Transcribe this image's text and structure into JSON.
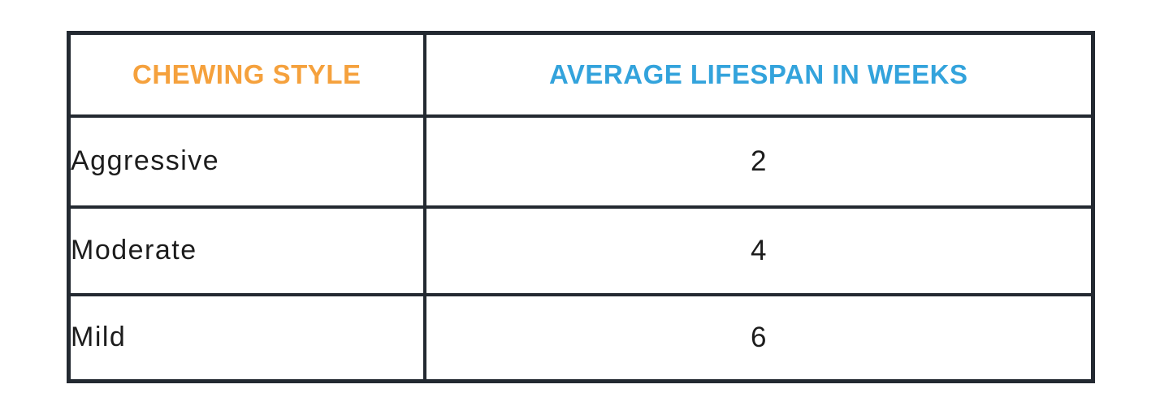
{
  "chart_data": {
    "type": "table",
    "columns": [
      "CHEWING STYLE",
      "AVERAGE LIFESPAN IN WEEKS"
    ],
    "rows": [
      [
        "Aggressive",
        "2"
      ],
      [
        "Moderate",
        "4"
      ],
      [
        "Mild",
        "6"
      ]
    ],
    "layout_hints": {
      "header_col1_color": "#F5A13D",
      "header_col2_color": "#33A3DC",
      "border_color": "#232931",
      "body_text_color": "#1c1c1c",
      "background": "#ffffff"
    }
  }
}
